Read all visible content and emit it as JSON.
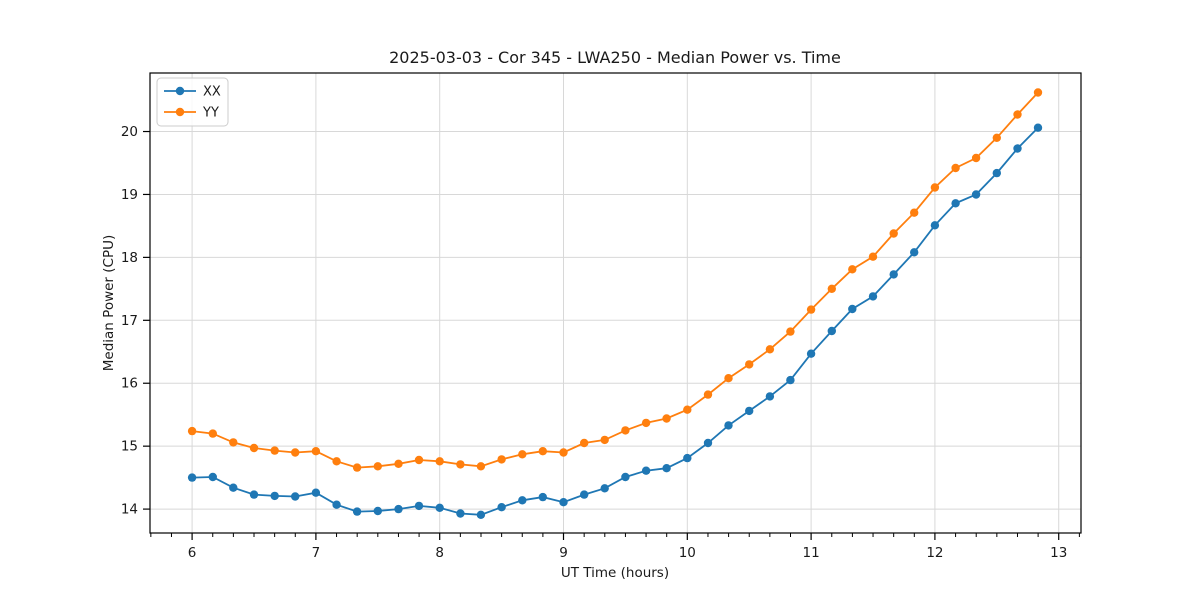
{
  "chart_data": {
    "type": "line",
    "title": "2025-03-03 - Cor 345 - LWA250 - Median Power vs. Time",
    "xlabel": "UT Time (hours)",
    "ylabel": "Median Power (CPU)",
    "xlim": [
      5.66,
      13.18
    ],
    "ylim": [
      13.62,
      20.93
    ],
    "xticks": [
      6,
      7,
      8,
      9,
      10,
      11,
      12,
      13
    ],
    "yticks": [
      14,
      15,
      16,
      17,
      18,
      19,
      20
    ],
    "x_minor_step": 0.16667,
    "grid": true,
    "legend_position": "upper-left",
    "background_color": "#ffffff",
    "grid_color": "#d8d8d8",
    "spine_color": "#000000",
    "x": [
      6.0,
      6.167,
      6.333,
      6.5,
      6.667,
      6.833,
      7.0,
      7.167,
      7.333,
      7.5,
      7.667,
      7.833,
      8.0,
      8.167,
      8.333,
      8.5,
      8.667,
      8.833,
      9.0,
      9.167,
      9.333,
      9.5,
      9.667,
      9.833,
      10.0,
      10.167,
      10.333,
      10.5,
      10.667,
      10.833,
      11.0,
      11.167,
      11.333,
      11.5,
      11.667,
      11.833,
      12.0,
      12.167,
      12.333,
      12.5,
      12.667,
      12.833
    ],
    "series": [
      {
        "name": "XX",
        "color": "#1f77b4",
        "marker": "circle",
        "values": [
          14.5,
          14.51,
          14.34,
          14.23,
          14.21,
          14.2,
          14.26,
          14.07,
          13.96,
          13.97,
          14.0,
          14.05,
          14.02,
          13.93,
          13.91,
          14.03,
          14.14,
          14.19,
          14.11,
          14.23,
          14.33,
          14.51,
          14.61,
          14.65,
          14.81,
          15.05,
          15.33,
          15.56,
          15.79,
          16.05,
          16.47,
          16.83,
          17.18,
          17.38,
          17.73,
          18.08,
          18.51,
          18.86,
          19.0,
          19.34,
          19.73,
          20.06
        ]
      },
      {
        "name": "YY",
        "color": "#ff7f0e",
        "marker": "circle",
        "values": [
          15.24,
          15.2,
          15.06,
          14.97,
          14.93,
          14.9,
          14.92,
          14.76,
          14.66,
          14.68,
          14.72,
          14.78,
          14.76,
          14.71,
          14.68,
          14.79,
          14.87,
          14.92,
          14.9,
          15.05,
          15.1,
          15.25,
          15.37,
          15.44,
          15.58,
          15.82,
          16.08,
          16.3,
          16.54,
          16.82,
          17.17,
          17.5,
          17.81,
          18.01,
          18.38,
          18.71,
          19.11,
          19.42,
          19.58,
          19.9,
          20.27,
          20.62
        ]
      }
    ]
  }
}
